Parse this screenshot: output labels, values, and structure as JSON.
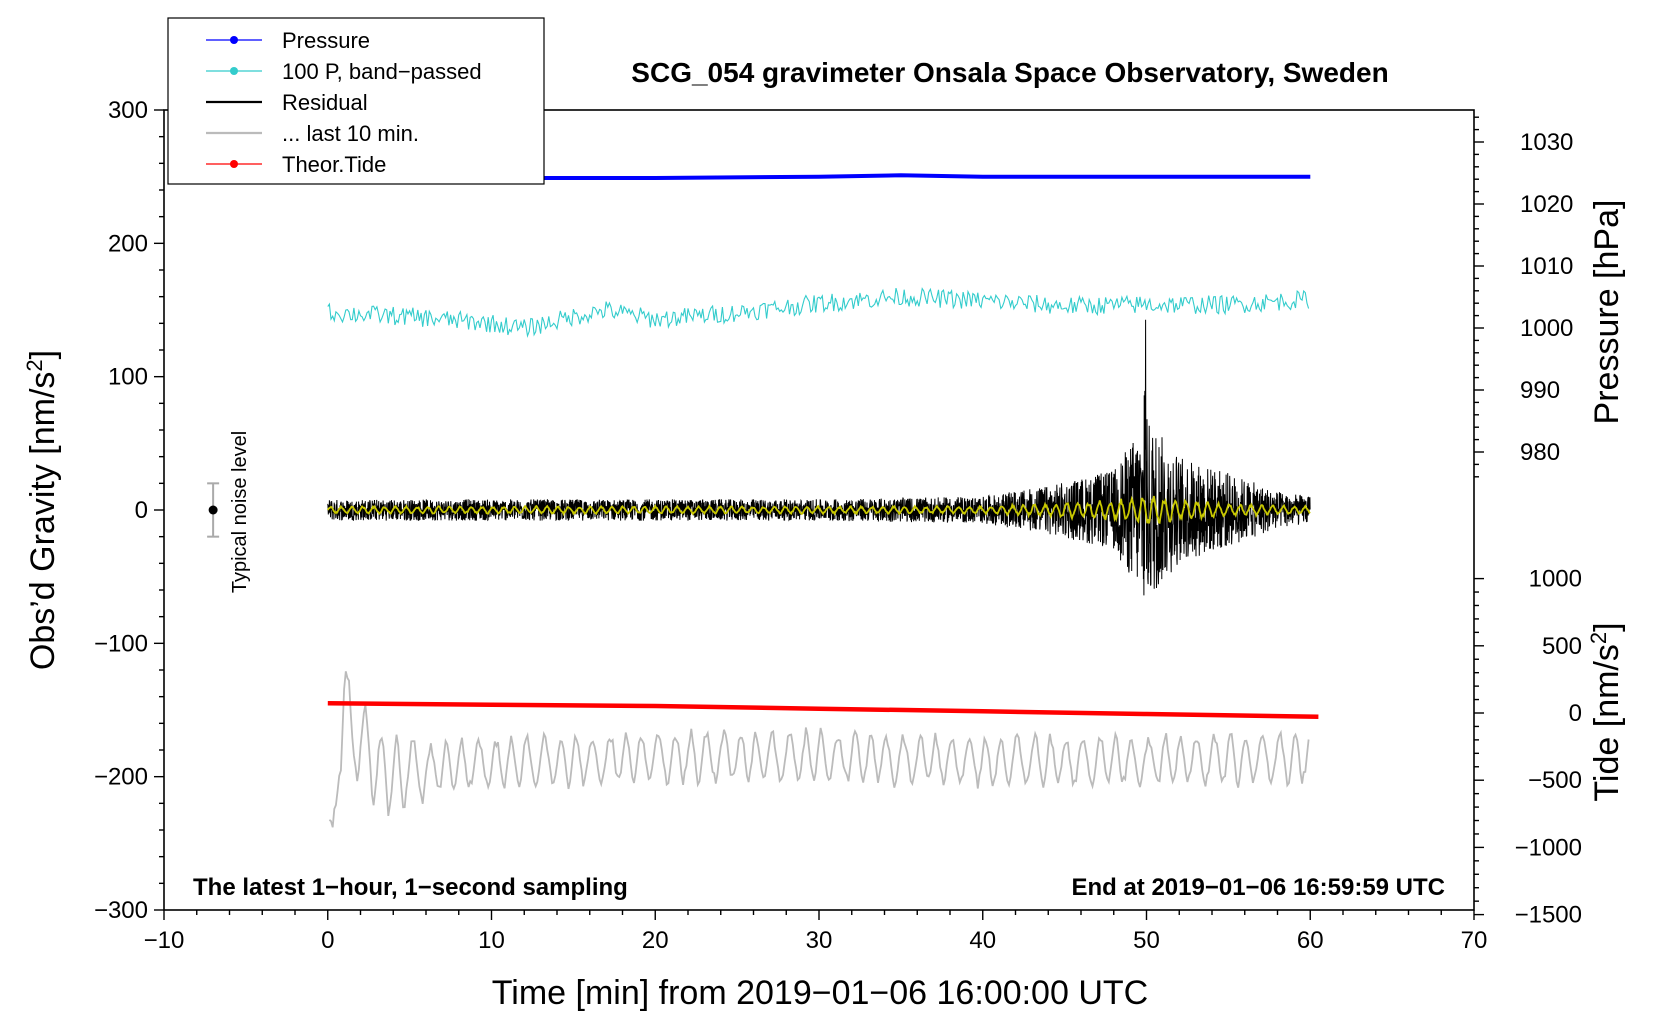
{
  "chart_data": {
    "type": "line",
    "title": "SCG_054 gravimeter Onsala Space Observatory, Sweden",
    "xlabel": "Time [min] from 2019−01−06 16:00:00 UTC",
    "ylabel_left": "Obs’d Gravity [nm/s",
    "ylabel_left_sup": "2",
    "ylabel_left_close": "]",
    "ylabel_right_pressure": "Pressure [hPa]",
    "ylabel_right_tide": "Tide [nm/s",
    "ylabel_right_tide_sup": "2",
    "ylabel_right_tide_close": "]",
    "xlim": [
      -10,
      70
    ],
    "ylim_left": [
      -300,
      300
    ],
    "x_ticks": [
      -10,
      0,
      10,
      20,
      30,
      40,
      50,
      60,
      70
    ],
    "x_tick_labels": [
      "−10",
      "0",
      "10",
      "20",
      "30",
      "40",
      "50",
      "60",
      "70"
    ],
    "y_left_ticks": [
      300,
      200,
      100,
      0,
      -100,
      -200,
      -300
    ],
    "y_left_tick_labels": [
      "300",
      "200",
      "100",
      "0",
      "−100",
      "−200",
      "−300"
    ],
    "pressure_ticks": [
      1030,
      1020,
      1010,
      1000,
      990,
      980
    ],
    "pressure_tick_labels": [
      "1030",
      "1020",
      "1010",
      "1000",
      "990",
      "980"
    ],
    "tide_ticks": [
      1000,
      500,
      0,
      -500,
      -1000,
      -1500
    ],
    "tide_tick_labels": [
      "1000",
      "500",
      "0",
      "−500",
      "−1000",
      "−1500"
    ],
    "annotation_left": "The latest 1−hour, 1−second sampling",
    "annotation_right": "End at 2019−01−06 16:59:59 UTC",
    "noise_label": "Typical noise level",
    "noise_level": {
      "x": -7,
      "center": 0,
      "half_range": 20
    },
    "legend": [
      {
        "label": "Pressure",
        "color": "#0000ff",
        "marker": true
      },
      {
        "label": "100 P, band−passed",
        "color": "#33cccc",
        "marker": true
      },
      {
        "label": "Residual",
        "color": "#000000",
        "marker": false
      },
      {
        "label": "... last 10 min.",
        "color": "#bbbbbb",
        "marker": false
      },
      {
        "label": "Theor.Tide",
        "color": "#ff0000",
        "marker": true
      }
    ],
    "series": [
      {
        "name": "Pressure",
        "color": "#0000ff",
        "x": [
          0,
          10,
          20,
          30,
          35,
          40,
          50,
          60
        ],
        "y": [
          250,
          249,
          249,
          250,
          251,
          250,
          250,
          250
        ]
      },
      {
        "name": "100 P, band−passed",
        "color": "#33cccc",
        "x": [
          0,
          5,
          10,
          12,
          15,
          17,
          20,
          25,
          30,
          35,
          40,
          45,
          50,
          55,
          60
        ],
        "y": [
          148,
          145,
          140,
          136,
          145,
          150,
          143,
          148,
          155,
          160,
          157,
          153,
          154,
          154,
          158
        ]
      },
      {
        "name": "Residual",
        "color": "#000000",
        "x": [
          0,
          10,
          20,
          30,
          40,
          44,
          48,
          50,
          52,
          55,
          58,
          60
        ],
        "amplitude": [
          8,
          8,
          8,
          8,
          10,
          18,
          30,
          70,
          40,
          28,
          14,
          10
        ]
      },
      {
        "name": "Residual, band−passed",
        "color": "#c8c800",
        "x": [
          0,
          40,
          48,
          50,
          55,
          60
        ],
        "amplitude": [
          3,
          3,
          8,
          12,
          5,
          3
        ]
      },
      {
        "name": "... last 10 min.",
        "color": "#bbbbbb",
        "x": [
          0,
          0.3,
          0.6,
          1,
          2,
          3,
          4,
          5,
          10,
          20,
          30,
          40,
          50,
          60
        ],
        "y": [
          -250,
          -270,
          -180,
          -150,
          -175,
          -190,
          -200,
          -195,
          -190,
          -185,
          -185,
          -188,
          -188,
          -185
        ]
      },
      {
        "name": "Theor.Tide",
        "color": "#ff0000",
        "x": [
          0,
          10,
          20,
          30,
          40,
          50,
          60.5
        ],
        "y": [
          -145,
          -146,
          -147,
          -149,
          -151,
          -153,
          -155
        ]
      }
    ]
  }
}
